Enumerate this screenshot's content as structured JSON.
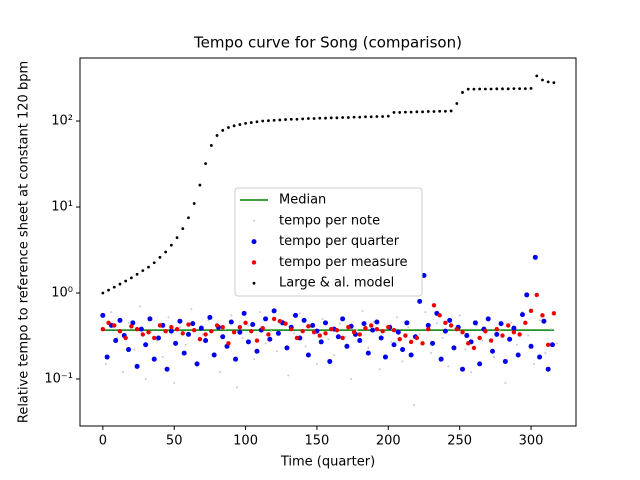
{
  "chart_data": {
    "type": "scatter",
    "title": "Tempo curve for Song (comparison)",
    "x_label": "Time (quarter)",
    "y_label": "Relative tempo to reference sheet at constant 120 bpm",
    "xlim": [
      -16,
      331.5
    ],
    "ylim": [
      0.0284,
      541
    ],
    "log_y": true,
    "xticks": [
      0,
      50,
      100,
      150,
      200,
      250,
      300
    ],
    "yticks": [
      {
        "value": 0.1,
        "label": "10⁻¹"
      },
      {
        "value": 1,
        "label": "10⁰"
      },
      {
        "value": 10,
        "label": "10¹"
      },
      {
        "value": 100,
        "label": "10²"
      }
    ],
    "legend": "center",
    "series": [
      {
        "name": "Median",
        "color": "#008000",
        "marker": "line",
        "x": [
          0,
          316
        ],
        "values": [
          0.37,
          0.37
        ]
      },
      {
        "name": "tempo per note",
        "color": "#c8c8c8",
        "marker": "point",
        "size": 1,
        "x": [
          2,
          6,
          10,
          14,
          18,
          22,
          26,
          30,
          34,
          38,
          42,
          46,
          50,
          54,
          58,
          62,
          66,
          70,
          74,
          78,
          82,
          86,
          90,
          94,
          98,
          102,
          106,
          110,
          114,
          118,
          122,
          126,
          130,
          134,
          138,
          142,
          146,
          150,
          154,
          158,
          162,
          166,
          170,
          174,
          178,
          182,
          186,
          190,
          194,
          198,
          202,
          206,
          210,
          214,
          218,
          222,
          226,
          230,
          234,
          238,
          242,
          246,
          250,
          254,
          258,
          262,
          266,
          270,
          274,
          278,
          282,
          286,
          290,
          294,
          298,
          302,
          306,
          310,
          314,
          318
        ],
        "values": [
          0.15,
          0.6,
          0.3,
          0.12,
          0.45,
          0.22,
          0.7,
          0.1,
          0.35,
          0.28,
          0.18,
          0.52,
          0.09,
          0.4,
          0.25,
          0.65,
          0.14,
          0.33,
          0.48,
          0.2,
          0.12,
          0.38,
          0.55,
          0.08,
          0.3,
          0.42,
          0.17,
          0.6,
          0.26,
          0.36,
          0.21,
          0.48,
          0.11,
          0.34,
          0.58,
          0.24,
          0.4,
          0.15,
          0.5,
          0.29,
          0.19,
          0.44,
          0.31,
          0.1,
          0.37,
          0.62,
          0.23,
          0.46,
          0.13,
          0.35,
          0.27,
          0.52,
          0.16,
          0.4,
          0.05,
          0.33,
          0.6,
          0.2,
          0.45,
          0.3,
          0.14,
          0.38,
          0.55,
          0.22,
          0.12,
          0.42,
          0.28,
          0.5,
          0.18,
          0.36,
          0.09,
          0.45,
          0.25,
          0.6,
          0.32,
          0.15,
          0.48,
          0.2,
          0.38,
          0.26
        ]
      },
      {
        "name": "tempo per quarter",
        "color": "#0000ee",
        "marker": "point",
        "size": 2.5,
        "x": [
          0,
          3,
          6,
          9,
          12,
          15,
          18,
          21,
          24,
          27,
          30,
          33,
          36,
          39,
          42,
          45,
          48,
          51,
          54,
          57,
          60,
          63,
          66,
          69,
          72,
          75,
          78,
          81,
          84,
          87,
          90,
          93,
          96,
          99,
          102,
          105,
          108,
          111,
          114,
          117,
          120,
          123,
          126,
          129,
          132,
          135,
          138,
          141,
          144,
          147,
          150,
          153,
          156,
          159,
          162,
          165,
          168,
          171,
          174,
          177,
          180,
          183,
          186,
          189,
          192,
          195,
          198,
          201,
          204,
          207,
          210,
          213,
          216,
          219,
          222,
          225,
          228,
          231,
          234,
          237,
          240,
          243,
          246,
          249,
          252,
          255,
          258,
          261,
          264,
          267,
          270,
          273,
          276,
          279,
          282,
          285,
          288,
          291,
          294,
          297,
          300,
          303,
          306,
          309,
          312,
          315
        ],
        "values": [
          0.55,
          0.18,
          0.42,
          0.28,
          0.48,
          0.32,
          0.22,
          0.45,
          0.14,
          0.38,
          0.25,
          0.5,
          0.17,
          0.3,
          0.42,
          0.13,
          0.36,
          0.26,
          0.47,
          0.2,
          0.33,
          0.44,
          0.15,
          0.39,
          0.28,
          0.52,
          0.19,
          0.4,
          0.31,
          0.24,
          0.46,
          0.17,
          0.35,
          0.58,
          0.27,
          0.43,
          0.21,
          0.37,
          0.5,
          0.29,
          0.62,
          0.34,
          0.45,
          0.23,
          0.4,
          0.55,
          0.3,
          0.48,
          0.19,
          0.42,
          0.36,
          0.27,
          0.45,
          0.16,
          0.38,
          0.31,
          0.5,
          0.24,
          0.41,
          0.33,
          0.28,
          0.44,
          0.2,
          0.37,
          0.46,
          0.3,
          0.18,
          0.4,
          0.25,
          0.35,
          0.22,
          0.45,
          0.19,
          0.31,
          0.8,
          1.6,
          0.42,
          0.26,
          0.58,
          0.17,
          0.36,
          0.48,
          0.23,
          0.4,
          0.13,
          0.32,
          0.27,
          0.45,
          0.15,
          0.38,
          0.5,
          0.21,
          0.33,
          0.44,
          0.16,
          0.29,
          0.39,
          0.19,
          0.56,
          0.95,
          0.24,
          2.6,
          0.18,
          0.47,
          0.13,
          0.25
        ]
      },
      {
        "name": "tempo per measure",
        "color": "#ee0000",
        "marker": "point",
        "size": 2.2,
        "x": [
          0,
          4,
          8,
          12,
          16,
          20,
          24,
          28,
          32,
          36,
          40,
          44,
          48,
          52,
          56,
          60,
          64,
          68,
          72,
          76,
          80,
          84,
          88,
          92,
          96,
          100,
          104,
          108,
          112,
          116,
          120,
          124,
          128,
          132,
          136,
          140,
          144,
          148,
          152,
          156,
          160,
          164,
          168,
          172,
          176,
          180,
          184,
          188,
          192,
          196,
          200,
          204,
          208,
          212,
          216,
          220,
          224,
          228,
          232,
          236,
          240,
          244,
          248,
          252,
          256,
          260,
          264,
          268,
          272,
          276,
          280,
          284,
          288,
          292,
          296,
          300,
          304,
          308,
          312,
          316
        ],
        "values": [
          0.38,
          0.45,
          0.42,
          0.36,
          0.3,
          0.41,
          0.38,
          0.33,
          0.35,
          0.3,
          0.42,
          0.36,
          0.4,
          0.38,
          0.34,
          0.43,
          0.37,
          0.29,
          0.33,
          0.36,
          0.42,
          0.4,
          0.26,
          0.35,
          0.4,
          0.45,
          0.36,
          0.28,
          0.39,
          0.33,
          0.5,
          0.47,
          0.44,
          0.38,
          0.3,
          0.36,
          0.41,
          0.35,
          0.32,
          0.34,
          0.38,
          0.37,
          0.3,
          0.4,
          0.35,
          0.33,
          0.39,
          0.42,
          0.38,
          0.36,
          0.4,
          0.37,
          0.29,
          0.32,
          0.27,
          0.3,
          0.26,
          0.38,
          0.72,
          0.55,
          0.45,
          0.42,
          0.38,
          0.35,
          0.26,
          0.23,
          0.3,
          0.36,
          0.28,
          0.38,
          0.32,
          0.42,
          0.35,
          0.33,
          0.45,
          0.62,
          0.95,
          0.55,
          0.25,
          0.58
        ]
      },
      {
        "name": "Large & al. model",
        "color": "#000000",
        "marker": "point",
        "size": 1.4,
        "x": [
          0,
          4,
          8,
          12,
          16,
          20,
          24,
          28,
          32,
          36,
          40,
          44,
          48,
          52,
          56,
          60,
          64,
          68,
          72,
          76,
          80,
          84,
          88,
          92,
          96,
          100,
          104,
          108,
          112,
          116,
          120,
          124,
          128,
          132,
          136,
          140,
          144,
          148,
          152,
          156,
          160,
          164,
          168,
          172,
          176,
          180,
          184,
          188,
          192,
          196,
          200,
          204,
          208,
          212,
          216,
          220,
          224,
          228,
          232,
          236,
          240,
          244,
          248,
          252,
          256,
          260,
          264,
          268,
          272,
          276,
          280,
          284,
          288,
          292,
          296,
          300,
          304,
          308,
          312,
          316
        ],
        "values": [
          1.0,
          1.08,
          1.17,
          1.27,
          1.38,
          1.5,
          1.65,
          1.82,
          2.0,
          2.25,
          2.6,
          3.0,
          3.6,
          4.4,
          5.6,
          7.5,
          11,
          18,
          32,
          52,
          68,
          78,
          84,
          88,
          91,
          94,
          96,
          98,
          100,
          101,
          102,
          103,
          104,
          105,
          105,
          106,
          107,
          107,
          108,
          108,
          109,
          109,
          110,
          110,
          111,
          111,
          112,
          112,
          113,
          113,
          114,
          126,
          126,
          127,
          127,
          128,
          128,
          129,
          129,
          130,
          130,
          131,
          160,
          215,
          235,
          235,
          236,
          236,
          236,
          237,
          237,
          237,
          238,
          238,
          238,
          240,
          335,
          300,
          285,
          280
        ]
      }
    ]
  }
}
